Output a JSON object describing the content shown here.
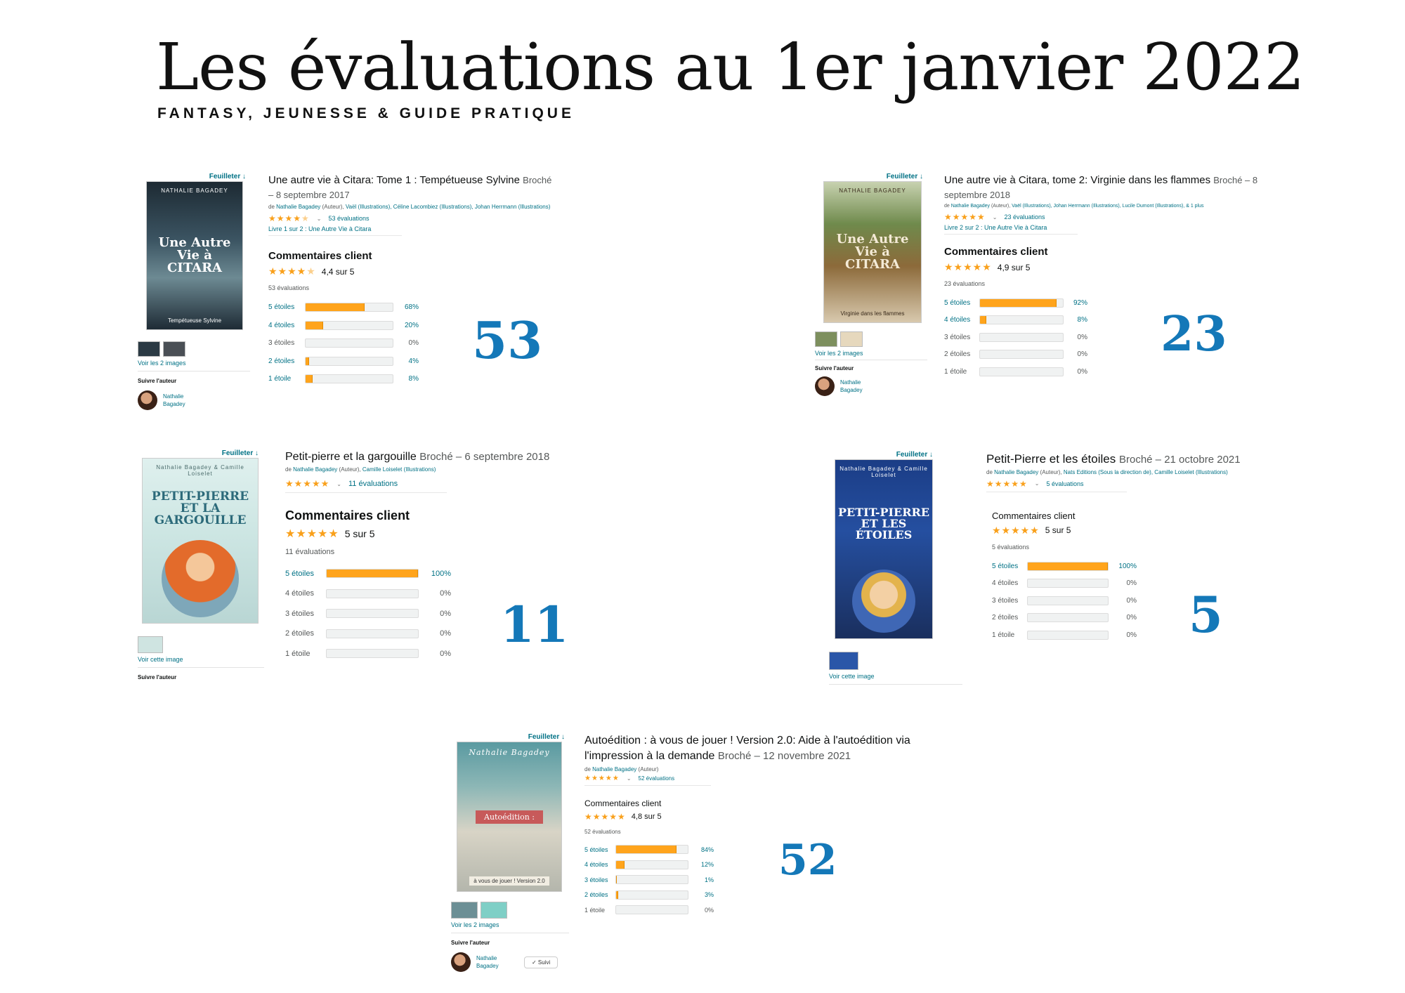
{
  "title": "Les évaluations au 1er janvier 2022",
  "subtitle": "FANTASY, JEUNESSE & GUIDE PRATIQUE",
  "feuilleter": "Feuilleter",
  "comments_title": "Commentaires client",
  "suivre_auteur": "Suivre l'auteur",
  "books": [
    {
      "title": "Une autre vie à Citara: Tome 1 : Tempétueuse Sylvine",
      "format": "Broché – 8 septembre 2017",
      "by_prefix": "de",
      "author": "Nathalie Bagadey",
      "author_role": "(Auteur),",
      "contributors": "Vaël (Illustrations), Céline Lacombiez (Illustrations), Johan Herrmann (Illustrations)",
      "rating_count_label": "53 évaluations",
      "series": "Livre 1 sur 2 : Une Autre Vie à Citara",
      "stars": "★★★★",
      "half_star": "★",
      "average": "4,4 sur 5",
      "total": "53 évaluations",
      "histogram": [
        {
          "label": "5 étoiles",
          "pct_label": "68%",
          "value": 68
        },
        {
          "label": "4 étoiles",
          "pct_label": "20%",
          "value": 20
        },
        {
          "label": "3 étoiles",
          "pct_label": "0%",
          "value": 0
        },
        {
          "label": "2 étoiles",
          "pct_label": "4%",
          "value": 4
        },
        {
          "label": "1 étoile",
          "pct_label": "8%",
          "value": 8
        }
      ],
      "thumb_link": "Voir les 2 images",
      "author_name": "Nathalie Bagadey",
      "cover_author": "NATHALIE BAGADEY",
      "cover_main": "Une Autre Vie à CITARA",
      "cover_sub": "Tempétueuse Sylvine",
      "big_number": "53"
    },
    {
      "title": "Une autre vie à Citara, tome 2: Virginie dans les flammes",
      "format": "Broché – 8 septembre 2018",
      "by_prefix": "de",
      "author": "Nathalie Bagadey",
      "author_role": "(Auteur),",
      "contributors": "Vaël (Illustrations), Johan Herrmann (Illustrations), Lucile Dumont (Illustrations), & 1 plus",
      "rating_count_label": "23 évaluations",
      "series": "Livre 2 sur 2 : Une Autre Vie à Citara",
      "stars": "★★★★★",
      "average": "4,9 sur 5",
      "total": "23 évaluations",
      "histogram": [
        {
          "label": "5 étoiles",
          "pct_label": "92%",
          "value": 92
        },
        {
          "label": "4 étoiles",
          "pct_label": "8%",
          "value": 8
        },
        {
          "label": "3 étoiles",
          "pct_label": "0%",
          "value": 0
        },
        {
          "label": "2 étoiles",
          "pct_label": "0%",
          "value": 0
        },
        {
          "label": "1 étoile",
          "pct_label": "0%",
          "value": 0
        }
      ],
      "thumb_link": "Voir les 2 images",
      "author_name": "Nathalie Bagadey",
      "cover_author": "NATHALIE BAGADEY",
      "cover_main": "Une Autre Vie à CITARA",
      "cover_sub": "Virginie dans les flammes",
      "big_number": "23"
    },
    {
      "title": "Petit-pierre et la gargouille",
      "format": "Broché – 6 septembre 2018",
      "by_prefix": "de",
      "author": "Nathalie Bagadey",
      "author_role": "(Auteur),",
      "contributors": "Camille Loiselet (Illustrations)",
      "rating_count_label": "11 évaluations",
      "stars": "★★★★★",
      "average": "5 sur 5",
      "total": "11 évaluations",
      "histogram": [
        {
          "label": "5 étoiles",
          "pct_label": "100%",
          "value": 100
        },
        {
          "label": "4 étoiles",
          "pct_label": "0%",
          "value": 0
        },
        {
          "label": "3 étoiles",
          "pct_label": "0%",
          "value": 0
        },
        {
          "label": "2 étoiles",
          "pct_label": "0%",
          "value": 0
        },
        {
          "label": "1 étoile",
          "pct_label": "0%",
          "value": 0
        }
      ],
      "thumb_link": "Voir cette image",
      "cover_author": "Nathalie Bagadey & Camille Loiselet",
      "cover_main": "PETIT-PIERRE ET LA GARGOUILLE",
      "big_number": "11"
    },
    {
      "title": "Petit-Pierre et les étoiles",
      "format": "Broché – 21 octobre 2021",
      "by_prefix": "de",
      "author": "Nathalie Bagadey",
      "author_role": "(Auteur),",
      "contributors": "Nats Editions (Sous la direction de), Camille Loiselet (Illustrations)",
      "rating_count_label": "5 évaluations",
      "stars": "★★★★★",
      "average": "5 sur 5",
      "total": "5 évaluations",
      "histogram": [
        {
          "label": "5 étoiles",
          "pct_label": "100%",
          "value": 100
        },
        {
          "label": "4 étoiles",
          "pct_label": "0%",
          "value": 0
        },
        {
          "label": "3 étoiles",
          "pct_label": "0%",
          "value": 0
        },
        {
          "label": "2 étoiles",
          "pct_label": "0%",
          "value": 0
        },
        {
          "label": "1 étoile",
          "pct_label": "0%",
          "value": 0
        }
      ],
      "thumb_link": "Voir cette image",
      "cover_author": "Nathalie Bagadey & Camille Loiselet",
      "cover_main": "PETIT-PIERRE ET LES ÉTOILES",
      "big_number": "5"
    },
    {
      "title": "Autoédition : à vous de jouer ! Version 2.0: Aide à l'autoédition via l'impression à la demande",
      "format": "Broché – 12 novembre 2021",
      "by_prefix": "de",
      "author": "Nathalie Bagadey",
      "author_role": "(Auteur)",
      "contributors": "",
      "rating_count_label": "52 évaluations",
      "stars": "★★★★★",
      "average": "4,8 sur 5",
      "total": "52 évaluations",
      "histogram": [
        {
          "label": "5 étoiles",
          "pct_label": "84%",
          "value": 84
        },
        {
          "label": "4 étoiles",
          "pct_label": "12%",
          "value": 12
        },
        {
          "label": "3 étoiles",
          "pct_label": "1%",
          "value": 1
        },
        {
          "label": "2 étoiles",
          "pct_label": "3%",
          "value": 3
        },
        {
          "label": "1 étoile",
          "pct_label": "0%",
          "value": 0
        }
      ],
      "thumb_link": "Voir les 2 images",
      "author_name": "Nathalie Bagadey",
      "follow_button": "✓ Suivi",
      "cover_author": "Nathalie Bagadey",
      "cover_main": "Autoédition :",
      "cover_sub": "à vous de jouer ! Version 2.0",
      "big_number": "52"
    }
  ],
  "colors": {
    "accent_number": "#1478b8",
    "bar_fill": "#ffa41c",
    "link": "#007185",
    "star": "#f9a01b"
  }
}
